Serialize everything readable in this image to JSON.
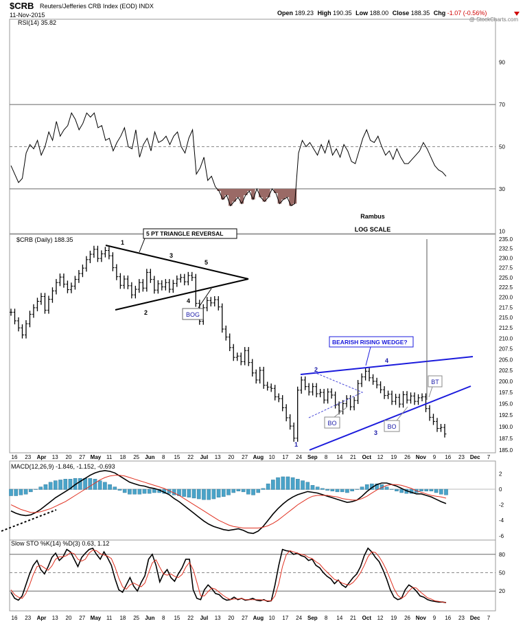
{
  "header": {
    "symbol": "$CRB",
    "name": "Reuters/Jefferies CRB Index (EOD)",
    "exchange": "INDX",
    "date": "11-Nov-2015",
    "open_label": "Open",
    "open": "189.23",
    "high_label": "High",
    "high": "190.35",
    "low_label": "Low",
    "low": "188.00",
    "close_label": "Close",
    "close": "188.35",
    "chg_label": "Chg",
    "chg": "-1.07 (-0.56%)",
    "watermark": "@ StockCharts.com"
  },
  "colors": {
    "price_bars": "#000000",
    "pattern_black": "#000000",
    "pattern_blue": "#1a1adc",
    "label_blue": "#1a1aa8",
    "rsi_fill": "#9a6a66",
    "macd_signal": "#e03020",
    "macd_hist": "#4aa3c8",
    "sto_d": "#e03020"
  },
  "annotations": {
    "rambus": "Rambus",
    "log_scale": "LOG SCALE",
    "triangle_label": "5 PT TRIANGLE REVERSAL",
    "wedge_label": "BEARISH RISING WEDGE?",
    "bog": "BOG",
    "bo1": "BO",
    "bo2": "BO",
    "bt": "BT",
    "tri_points": [
      "1",
      "2",
      "3",
      "4",
      "5"
    ],
    "wedge_points": [
      "1",
      "2",
      "3",
      "4"
    ]
  },
  "x_axis": {
    "labels": [
      "16",
      "23",
      "Apr",
      "13",
      "20",
      "27",
      "May",
      "11",
      "18",
      "25",
      "Jun",
      "8",
      "15",
      "22",
      "Jul",
      "13",
      "20",
      "27",
      "Aug",
      "10",
      "17",
      "24",
      "Sep",
      "8",
      "14",
      "21",
      "Oct",
      "12",
      "19",
      "26",
      "Nov",
      "9",
      "16",
      "23",
      "Dec",
      "7"
    ],
    "bold": [
      "Apr",
      "May",
      "Jun",
      "Jul",
      "Aug",
      "Sep",
      "Oct",
      "Nov",
      "Dec"
    ]
  },
  "chart_data": [
    {
      "type": "line",
      "panel": "rsi",
      "title": "RSI(14) 35.82",
      "ylim": [
        0,
        100
      ],
      "y_ticks": [
        90,
        70,
        50,
        30,
        10
      ],
      "reference_lines": [
        70,
        50,
        30
      ],
      "series": [
        {
          "name": "RSI(14)",
          "values": [
            41,
            37,
            33,
            35,
            47,
            51,
            49,
            53,
            46,
            50,
            57,
            53,
            62,
            55,
            58,
            60,
            66,
            63,
            58,
            61,
            66,
            64,
            66,
            59,
            60,
            53,
            54,
            48,
            52,
            55,
            59,
            50,
            49,
            58,
            45,
            51,
            54,
            48,
            57,
            52,
            53,
            55,
            51,
            55,
            57,
            50,
            47,
            54,
            58,
            37,
            40,
            45,
            34,
            36,
            31,
            29,
            25,
            27,
            22,
            24,
            26,
            23,
            27,
            29,
            25,
            30,
            26,
            24,
            26,
            30,
            28,
            23,
            25,
            26,
            22,
            23,
            47,
            53,
            50,
            52,
            49,
            46,
            51,
            47,
            53,
            46,
            49,
            45,
            51,
            48,
            43,
            42,
            48,
            54,
            58,
            53,
            52,
            55,
            50,
            46,
            48,
            44,
            49,
            45,
            42,
            42,
            44,
            46,
            48,
            52,
            49,
            45,
            41,
            39,
            38,
            36
          ]
        }
      ]
    },
    {
      "type": "bar",
      "panel": "price",
      "title": "$CRB (Daily) 188.35",
      "scale": "log",
      "ylim": [
        185.0,
        235.0
      ],
      "y_ticks": [
        235.0,
        232.5,
        230.0,
        227.5,
        225.0,
        222.5,
        220.0,
        217.5,
        215.0,
        212.5,
        210.0,
        207.5,
        205.0,
        202.5,
        200.0,
        197.5,
        195.0,
        192.5,
        190.0,
        187.5,
        185.0
      ],
      "series": [
        {
          "name": "$CRB",
          "values": [
            216.3,
            214.2,
            212.5,
            210.8,
            213.5,
            215.8,
            217.4,
            219.0,
            220.2,
            216.8,
            219.5,
            221.6,
            223.7,
            225.1,
            223.3,
            221.9,
            222.8,
            224.5,
            226.0,
            227.4,
            229.6,
            231.0,
            232.3,
            229.9,
            231.1,
            232.0,
            230.6,
            227.5,
            225.2,
            223.0,
            224.6,
            222.9,
            220.6,
            222.0,
            223.7,
            222.3,
            226.3,
            224.5,
            221.8,
            223.4,
            222.6,
            223.7,
            222.0,
            223.5,
            224.6,
            225.0,
            223.9,
            225.5,
            225.0,
            218.5,
            214.1,
            217.4,
            219.2,
            218.6,
            219.4,
            217.6,
            212.2,
            210.3,
            207.8,
            205.5,
            205.8,
            204.5,
            207.1,
            204.3,
            201.9,
            200.3,
            202.5,
            199.1,
            198.7,
            198.4,
            196.5,
            196.1,
            194.1,
            191.9,
            190.1,
            187.5,
            198.0,
            200.3,
            198.8,
            197.6,
            198.8,
            197.2,
            197.5,
            195.8,
            197.6,
            196.9,
            194.7,
            193.4,
            195.0,
            196.1,
            194.3,
            195.7,
            199.5,
            201.0,
            202.3,
            200.8,
            200.0,
            199.2,
            198.1,
            196.8,
            197.1,
            195.5,
            196.4,
            194.9,
            197.0,
            195.8,
            196.7,
            195.5,
            196.3,
            196.5,
            193.9,
            192.0,
            191.1,
            189.6,
            189.8,
            188.4
          ]
        }
      ]
    },
    {
      "type": "line",
      "panel": "macd",
      "title": "MACD(12,26,9) -1.846, -1.152, -0.693",
      "ylim": [
        -7,
        3
      ],
      "y_ticks": [
        2,
        0,
        -2,
        -4,
        -6
      ],
      "series": [
        {
          "name": "MACD",
          "values": [
            -2.8,
            -3.1,
            -3.3,
            -3.4,
            -3.3,
            -3.0,
            -2.6,
            -2.1,
            -1.6,
            -1.1,
            -0.7,
            -0.3,
            0.1,
            0.6,
            1.0,
            1.4,
            1.8,
            2.1,
            2.3,
            2.4,
            2.3,
            2.1,
            1.7,
            1.3,
            0.9,
            0.7,
            0.5,
            0.4,
            0.2,
            0.1,
            -0.1,
            -0.4,
            -0.7,
            -1.2,
            -1.6,
            -2.1,
            -2.6,
            -3.1,
            -3.6,
            -4.1,
            -4.5,
            -4.8,
            -5.0,
            -5.2,
            -5.3,
            -5.2,
            -5.1,
            -5.3,
            -5.6,
            -5.7,
            -5.4,
            -4.8,
            -4.0,
            -3.2,
            -2.5,
            -1.9,
            -1.4,
            -1.0,
            -0.7,
            -0.5,
            -0.3,
            -0.4,
            -0.5,
            -0.7,
            -0.9,
            -1.1,
            -1.3,
            -1.5,
            -1.7,
            -1.6,
            -1.4,
            -0.9,
            -0.3,
            0.2,
            0.6,
            0.8,
            0.8,
            0.6,
            0.4,
            0.1,
            -0.2,
            -0.4,
            -0.6,
            -0.6,
            -0.8,
            -1.0,
            -1.3,
            -1.6,
            -1.85
          ]
        },
        {
          "name": "Signal",
          "values": [
            -2.0,
            -2.3,
            -2.6,
            -2.8,
            -3.0,
            -3.0,
            -2.9,
            -2.7,
            -2.5,
            -2.2,
            -1.9,
            -1.6,
            -1.2,
            -0.8,
            -0.4,
            0.0,
            0.4,
            0.8,
            1.2,
            1.5,
            1.7,
            1.8,
            1.8,
            1.7,
            1.5,
            1.3,
            1.1,
            0.9,
            0.7,
            0.5,
            0.3,
            0.1,
            -0.2,
            -0.5,
            -0.8,
            -1.2,
            -1.6,
            -2.0,
            -2.4,
            -2.8,
            -3.2,
            -3.6,
            -4.0,
            -4.3,
            -4.6,
            -4.8,
            -4.9,
            -5.0,
            -5.0,
            -5.0,
            -5.0,
            -4.9,
            -4.7,
            -4.4,
            -4.0,
            -3.5,
            -3.0,
            -2.5,
            -2.0,
            -1.6,
            -1.2,
            -0.9,
            -0.8,
            -0.8,
            -0.8,
            -0.9,
            -1.0,
            -1.2,
            -1.3,
            -1.4,
            -1.4,
            -1.2,
            -0.9,
            -0.5,
            -0.1,
            0.2,
            0.5,
            0.6,
            0.6,
            0.5,
            0.3,
            0.1,
            -0.2,
            -0.4,
            -0.6,
            -0.8,
            -0.9,
            -1.0,
            -1.15
          ]
        }
      ],
      "histogram": [
        -0.8,
        -0.8,
        -0.7,
        -0.6,
        -0.3,
        0.0,
        0.3,
        0.6,
        0.9,
        1.1,
        1.2,
        1.3,
        1.3,
        1.4,
        1.4,
        1.4,
        1.4,
        1.3,
        1.1,
        0.9,
        0.6,
        0.3,
        -0.1,
        -0.4,
        -0.6,
        -0.6,
        -0.6,
        -0.5,
        -0.5,
        -0.4,
        -0.4,
        -0.5,
        -0.5,
        -0.7,
        -0.8,
        -0.9,
        -1.0,
        -1.1,
        -1.2,
        -1.3,
        -1.3,
        -1.2,
        -1.0,
        -0.9,
        -0.7,
        -0.4,
        -0.2,
        -0.3,
        -0.6,
        -0.7,
        -0.4,
        0.1,
        0.7,
        1.2,
        1.5,
        1.6,
        1.6,
        1.5,
        1.3,
        1.1,
        0.9,
        0.5,
        0.3,
        0.1,
        -0.1,
        -0.2,
        -0.3,
        -0.3,
        -0.4,
        -0.2,
        0.0,
        0.3,
        0.6,
        0.7,
        0.7,
        0.6,
        0.3,
        0.0,
        -0.2,
        -0.4,
        -0.5,
        -0.5,
        -0.4,
        -0.2,
        -0.2,
        -0.2,
        -0.4,
        -0.6,
        -0.69
      ]
    },
    {
      "type": "line",
      "panel": "stochastic",
      "title": "Slow STO %K(14) %D(3) 0.63, 1.12",
      "ylim": [
        0,
        100
      ],
      "y_ticks": [
        80,
        50,
        20
      ],
      "reference_lines": [
        80,
        50,
        20
      ],
      "series": [
        {
          "name": "%K",
          "values": [
            18,
            8,
            5,
            12,
            30,
            48,
            62,
            70,
            55,
            48,
            60,
            75,
            82,
            70,
            76,
            88,
            84,
            72,
            60,
            75,
            82,
            88,
            90,
            80,
            72,
            84,
            74,
            62,
            40,
            22,
            18,
            30,
            42,
            28,
            20,
            34,
            45,
            72,
            80,
            62,
            35,
            48,
            55,
            42,
            36,
            48,
            58,
            72,
            72,
            22,
            8,
            6,
            22,
            30,
            24,
            16,
            14,
            8,
            5,
            6,
            10,
            6,
            8,
            5,
            6,
            8,
            5,
            4,
            6,
            3,
            4,
            30,
            62,
            88,
            86,
            85,
            80,
            82,
            78,
            76,
            70,
            72,
            62,
            58,
            50,
            44,
            40,
            32,
            38,
            30,
            26,
            34,
            42,
            48,
            60,
            78,
            90,
            84,
            75,
            68,
            55,
            40,
            22,
            10,
            6,
            8,
            22,
            30,
            26,
            20,
            12,
            10,
            6,
            4,
            3,
            2,
            2,
            1
          ]
        },
        {
          "name": "%D",
          "values": [
            22,
            14,
            10,
            8,
            16,
            30,
            47,
            60,
            62,
            58,
            54,
            61,
            72,
            76,
            76,
            78,
            83,
            81,
            72,
            69,
            72,
            82,
            87,
            86,
            81,
            79,
            77,
            73,
            59,
            41,
            27,
            23,
            30,
            33,
            30,
            27,
            33,
            50,
            66,
            71,
            59,
            48,
            46,
            48,
            44,
            42,
            47,
            59,
            67,
            55,
            34,
            12,
            12,
            19,
            25,
            23,
            18,
            13,
            9,
            6,
            7,
            7,
            8,
            6,
            6,
            6,
            6,
            6,
            5,
            4,
            4,
            12,
            32,
            60,
            79,
            86,
            84,
            82,
            80,
            79,
            75,
            73,
            68,
            64,
            57,
            51,
            45,
            39,
            37,
            33,
            31,
            30,
            34,
            41,
            50,
            62,
            76,
            84,
            83,
            76,
            66,
            54,
            39,
            24,
            13,
            8,
            12,
            20,
            26,
            25,
            19,
            14,
            9,
            7,
            4,
            3,
            2,
            1
          ]
        }
      ]
    }
  ]
}
